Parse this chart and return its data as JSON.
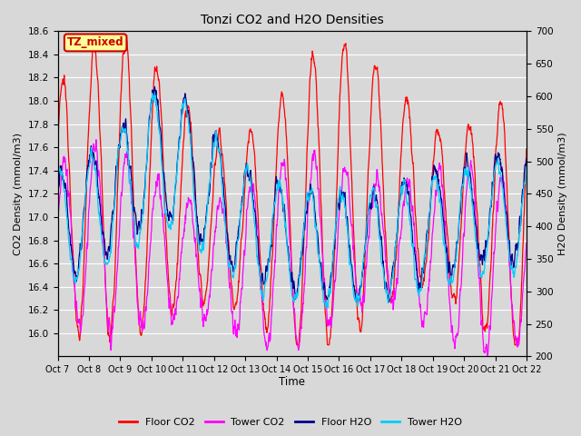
{
  "title": "Tonzi CO2 and H2O Densities",
  "xlabel": "Time",
  "ylabel_left": "CO2 Density (mmol/m3)",
  "ylabel_right": "H2O Density (mmol/m3)",
  "ylim_left": [
    15.8,
    18.6
  ],
  "ylim_right": [
    200,
    700
  ],
  "yticks_left": [
    16.0,
    16.2,
    16.4,
    16.6,
    16.8,
    17.0,
    17.2,
    17.4,
    17.6,
    17.8,
    18.0,
    18.2,
    18.4,
    18.6
  ],
  "yticks_right": [
    200,
    250,
    300,
    350,
    400,
    450,
    500,
    550,
    600,
    650,
    700
  ],
  "xtick_labels": [
    "Oct 7",
    "Oct 8",
    "Oct 9",
    "Oct 10",
    "Oct 11",
    "Oct 12",
    "Oct 13",
    "Oct 14",
    "Oct 15",
    "Oct 16",
    "Oct 17",
    "Oct 18",
    "Oct 19",
    "Oct 20",
    "Oct 21",
    "Oct 22"
  ],
  "color_floor_co2": "#FF0000",
  "color_tower_co2": "#FF00FF",
  "color_floor_h2o": "#00008B",
  "color_tower_h2o": "#00CCFF",
  "label_floor_co2": "Floor CO2",
  "label_tower_co2": "Tower CO2",
  "label_floor_h2o": "Floor H2O",
  "label_tower_h2o": "Tower H2O",
  "annotation_text": "TZ_mixed",
  "annotation_bg": "#FFFF99",
  "annotation_border": "#CC0000",
  "background_color": "#D8D8D8",
  "grid_color": "#FFFFFF",
  "n_points": 1440,
  "days": 15
}
